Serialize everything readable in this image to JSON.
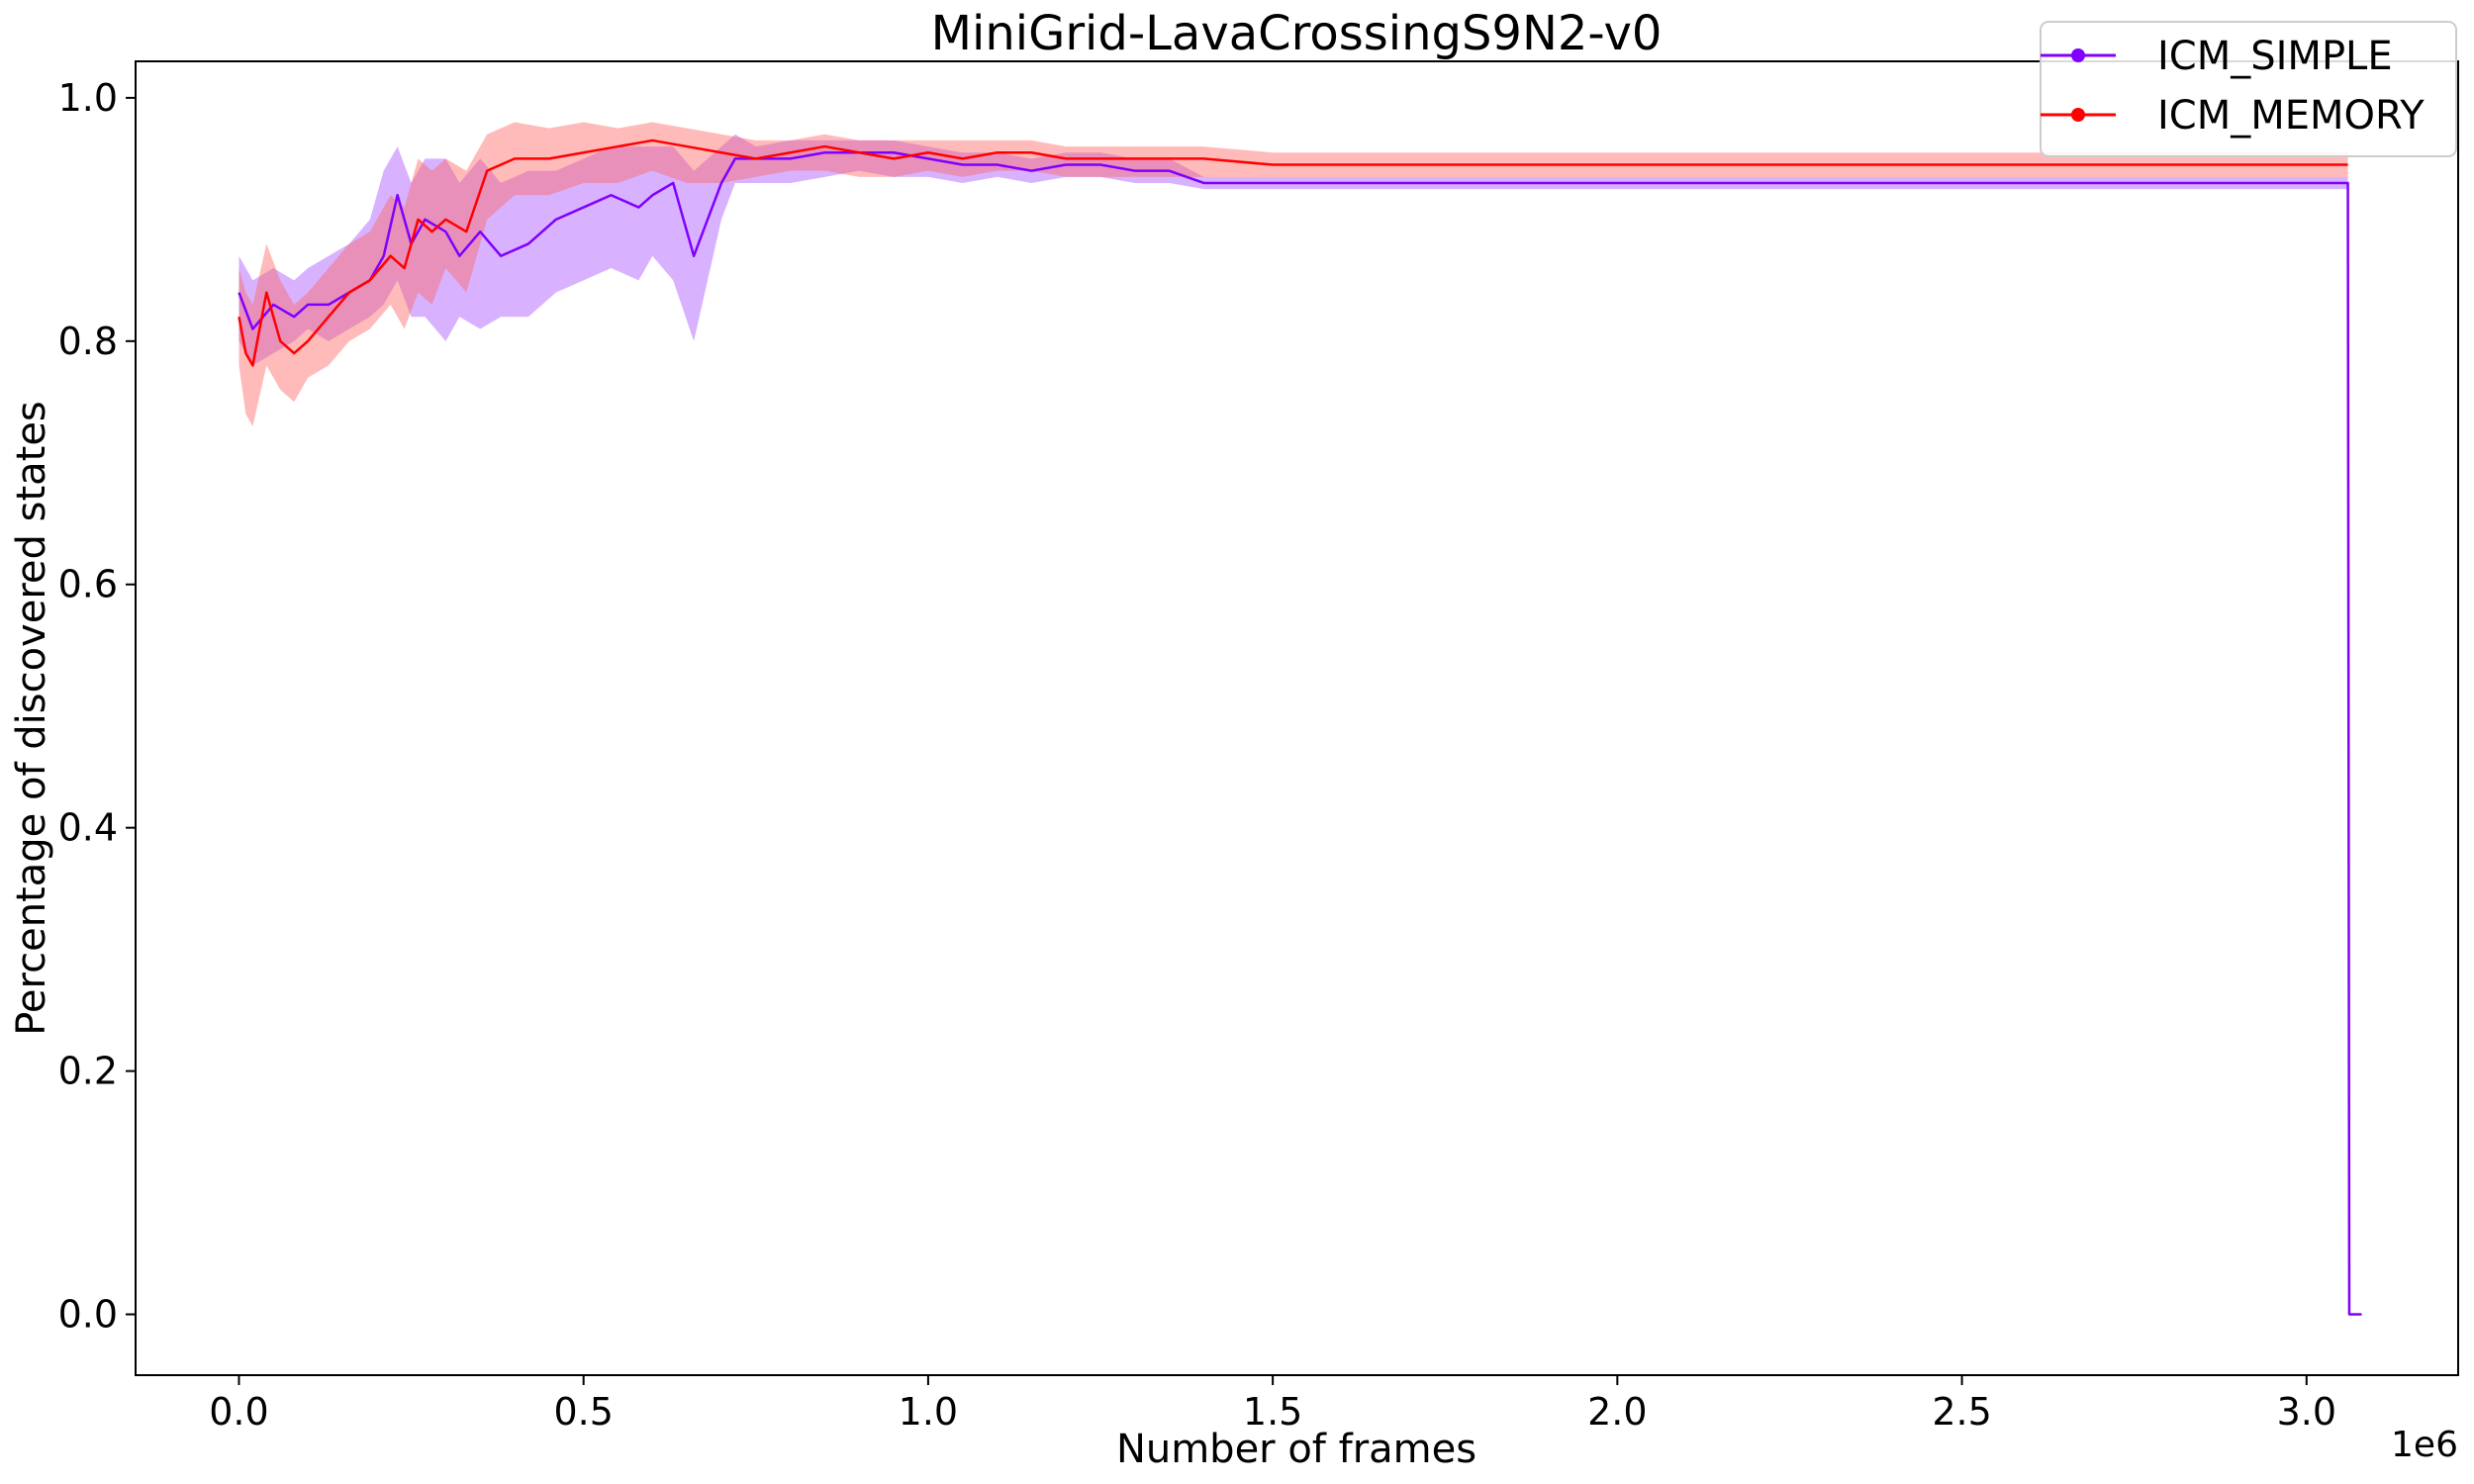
{
  "chart_data": {
    "type": "line",
    "title": "MiniGrid-LavaCrossingS9N2-v0",
    "xlabel": "Number of frames",
    "ylabel": "Percentage of discovered states",
    "x_offset_label": "1e6",
    "xlim": [
      -0.15,
      3.22
    ],
    "ylim": [
      -0.05,
      1.03
    ],
    "x_ticks": [
      0.0,
      0.5,
      1.0,
      1.5,
      2.0,
      2.5,
      3.0
    ],
    "x_tick_labels": [
      "0.0",
      "0.5",
      "1.0",
      "1.5",
      "2.0",
      "2.5",
      "3.0"
    ],
    "y_ticks": [
      0.0,
      0.2,
      0.4,
      0.6,
      0.8,
      1.0
    ],
    "y_tick_labels": [
      "0.0",
      "0.2",
      "0.4",
      "0.6",
      "0.8",
      "1.0"
    ],
    "grid": false,
    "legend_position": "top-right",
    "x_units": "frames (x1e6)",
    "series": [
      {
        "name": "ICM_SIMPLE",
        "color": "#8000ff",
        "band_color": "#a855ff",
        "x": [
          0.0,
          0.02,
          0.05,
          0.08,
          0.1,
          0.13,
          0.16,
          0.19,
          0.21,
          0.23,
          0.25,
          0.27,
          0.3,
          0.32,
          0.35,
          0.38,
          0.42,
          0.46,
          0.5,
          0.54,
          0.58,
          0.6,
          0.63,
          0.66,
          0.68,
          0.7,
          0.72,
          0.75,
          0.8,
          0.85,
          0.9,
          0.95,
          1.0,
          1.05,
          1.1,
          1.15,
          1.2,
          1.25,
          1.3,
          1.35,
          1.4,
          1.42,
          1.5,
          2.0,
          2.5,
          3.06,
          3.062,
          3.08
        ],
        "y": [
          0.84,
          0.81,
          0.83,
          0.82,
          0.83,
          0.83,
          0.84,
          0.85,
          0.87,
          0.92,
          0.88,
          0.9,
          0.89,
          0.87,
          0.89,
          0.87,
          0.88,
          0.9,
          0.91,
          0.92,
          0.91,
          0.92,
          0.93,
          0.87,
          0.9,
          0.93,
          0.95,
          0.95,
          0.95,
          0.955,
          0.955,
          0.955,
          0.95,
          0.945,
          0.945,
          0.94,
          0.945,
          0.945,
          0.94,
          0.94,
          0.93,
          0.93,
          0.93,
          0.93,
          0.93,
          0.93,
          0.0,
          0.0
        ],
        "y_low": [
          0.8,
          0.78,
          0.79,
          0.8,
          0.81,
          0.8,
          0.81,
          0.82,
          0.83,
          0.85,
          0.82,
          0.82,
          0.8,
          0.82,
          0.81,
          0.82,
          0.82,
          0.84,
          0.85,
          0.86,
          0.85,
          0.87,
          0.85,
          0.8,
          0.85,
          0.9,
          0.93,
          0.93,
          0.93,
          0.935,
          0.94,
          0.935,
          0.935,
          0.93,
          0.935,
          0.93,
          0.935,
          0.935,
          0.93,
          0.93,
          0.925,
          0.925,
          0.925,
          0.925,
          0.925,
          0.925,
          0.0,
          0.0
        ],
        "y_high": [
          0.87,
          0.85,
          0.86,
          0.85,
          0.86,
          0.87,
          0.88,
          0.9,
          0.94,
          0.96,
          0.93,
          0.95,
          0.95,
          0.93,
          0.95,
          0.93,
          0.94,
          0.94,
          0.95,
          0.96,
          0.96,
          0.96,
          0.96,
          0.94,
          0.95,
          0.96,
          0.97,
          0.96,
          0.965,
          0.965,
          0.965,
          0.965,
          0.96,
          0.955,
          0.955,
          0.95,
          0.955,
          0.955,
          0.95,
          0.95,
          0.935,
          0.935,
          0.935,
          0.935,
          0.935,
          0.935,
          0.0,
          0.0
        ]
      },
      {
        "name": "ICM_MEMORY",
        "color": "#ff0000",
        "band_color": "#ff6666",
        "x": [
          0.0,
          0.01,
          0.02,
          0.04,
          0.06,
          0.08,
          0.1,
          0.13,
          0.16,
          0.19,
          0.22,
          0.24,
          0.26,
          0.28,
          0.3,
          0.33,
          0.36,
          0.4,
          0.45,
          0.5,
          0.55,
          0.6,
          0.65,
          0.7,
          0.75,
          0.8,
          0.85,
          0.9,
          0.95,
          1.0,
          1.05,
          1.1,
          1.15,
          1.2,
          1.3,
          1.4,
          1.5,
          1.6,
          1.7,
          1.8,
          1.9,
          2.0,
          2.2,
          2.4,
          2.6,
          2.8,
          3.0,
          3.06
        ],
        "y": [
          0.82,
          0.79,
          0.78,
          0.84,
          0.8,
          0.79,
          0.8,
          0.82,
          0.84,
          0.85,
          0.87,
          0.86,
          0.9,
          0.89,
          0.9,
          0.89,
          0.94,
          0.95,
          0.95,
          0.955,
          0.96,
          0.965,
          0.96,
          0.955,
          0.95,
          0.955,
          0.96,
          0.955,
          0.95,
          0.955,
          0.95,
          0.955,
          0.955,
          0.95,
          0.95,
          0.95,
          0.945,
          0.945,
          0.945,
          0.945,
          0.945,
          0.945,
          0.945,
          0.945,
          0.945,
          0.945,
          0.945,
          0.945
        ],
        "y_low": [
          0.78,
          0.74,
          0.73,
          0.78,
          0.76,
          0.75,
          0.77,
          0.78,
          0.8,
          0.81,
          0.83,
          0.81,
          0.84,
          0.83,
          0.86,
          0.84,
          0.9,
          0.92,
          0.92,
          0.93,
          0.93,
          0.94,
          0.93,
          0.93,
          0.935,
          0.94,
          0.94,
          0.935,
          0.935,
          0.94,
          0.935,
          0.94,
          0.94,
          0.935,
          0.935,
          0.935,
          0.935,
          0.935,
          0.935,
          0.935,
          0.935,
          0.935,
          0.935,
          0.935,
          0.935,
          0.935,
          0.935,
          0.935
        ],
        "y_high": [
          0.86,
          0.84,
          0.83,
          0.88,
          0.85,
          0.83,
          0.84,
          0.86,
          0.88,
          0.89,
          0.92,
          0.91,
          0.95,
          0.94,
          0.95,
          0.94,
          0.97,
          0.98,
          0.975,
          0.98,
          0.975,
          0.98,
          0.975,
          0.97,
          0.965,
          0.965,
          0.97,
          0.965,
          0.965,
          0.965,
          0.965,
          0.965,
          0.965,
          0.96,
          0.96,
          0.96,
          0.955,
          0.955,
          0.955,
          0.955,
          0.955,
          0.955,
          0.955,
          0.955,
          0.955,
          0.955,
          0.955,
          0.955
        ]
      }
    ]
  }
}
